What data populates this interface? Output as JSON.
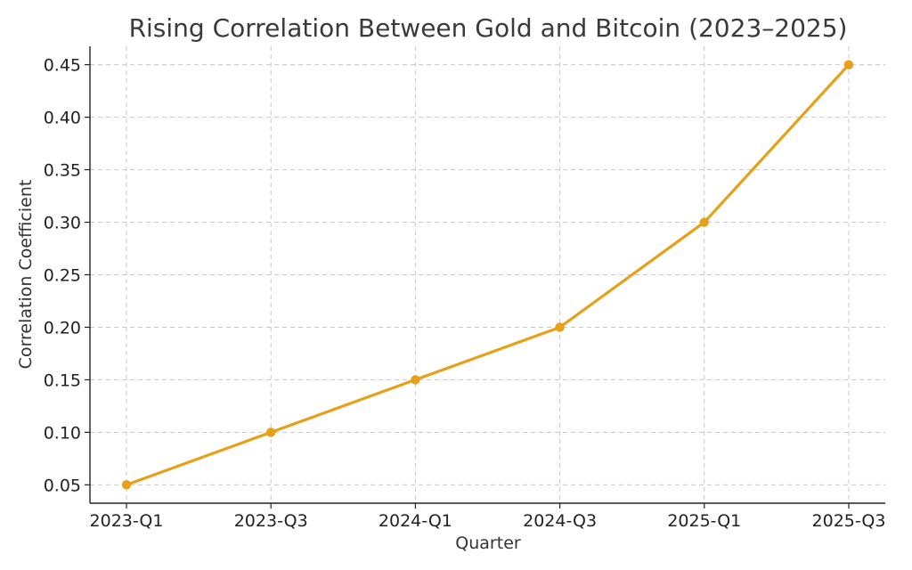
{
  "chart_data": {
    "type": "line",
    "title": "Rising Correlation Between Gold and Bitcoin (2023–2025)",
    "xlabel": "Quarter",
    "ylabel": "Correlation Coefficient",
    "categories": [
      "2023-Q1",
      "2023-Q3",
      "2024-Q1",
      "2024-Q3",
      "2025-Q1",
      "2025-Q3"
    ],
    "series": [
      {
        "values": [
          0.05,
          0.1,
          0.15,
          0.2,
          0.3,
          0.45
        ],
        "color": "#e6a118"
      }
    ],
    "ylim": [
      0.0325,
      0.4675
    ],
    "yticks": [
      0.05,
      0.1,
      0.15,
      0.2,
      0.25,
      0.3,
      0.35,
      0.4,
      0.45
    ],
    "ytick_labels": [
      "0.05",
      "0.10",
      "0.15",
      "0.20",
      "0.25",
      "0.30",
      "0.35",
      "0.40",
      "0.45"
    ],
    "grid": true,
    "markers": true
  }
}
